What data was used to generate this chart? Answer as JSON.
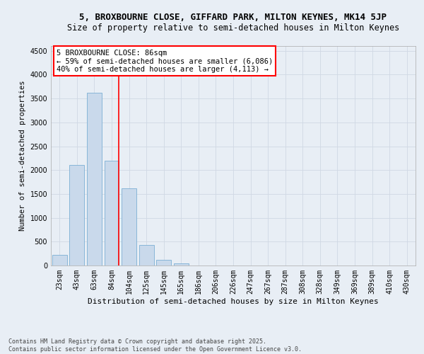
{
  "title1": "5, BROXBOURNE CLOSE, GIFFARD PARK, MILTON KEYNES, MK14 5JP",
  "title2": "Size of property relative to semi-detached houses in Milton Keynes",
  "xlabel": "Distribution of semi-detached houses by size in Milton Keynes",
  "ylabel": "Number of semi-detached properties",
  "footnote": "Contains HM Land Registry data © Crown copyright and database right 2025.\nContains public sector information licensed under the Open Government Licence v3.0.",
  "categories": [
    "23sqm",
    "43sqm",
    "63sqm",
    "84sqm",
    "104sqm",
    "125sqm",
    "145sqm",
    "165sqm",
    "186sqm",
    "206sqm",
    "226sqm",
    "247sqm",
    "267sqm",
    "287sqm",
    "308sqm",
    "328sqm",
    "349sqm",
    "369sqm",
    "389sqm",
    "410sqm",
    "430sqm"
  ],
  "values": [
    230,
    2100,
    3620,
    2200,
    1620,
    430,
    115,
    50,
    0,
    0,
    0,
    0,
    0,
    0,
    0,
    0,
    0,
    0,
    0,
    0,
    0
  ],
  "bar_color": "#c9d9eb",
  "bar_edge_color": "#7bafd4",
  "grid_color": "#d0d8e4",
  "background_color": "#e8eef5",
  "vline_color": "red",
  "annotation_box_text": "5 BROXBOURNE CLOSE: 86sqm\n← 59% of semi-detached houses are smaller (6,086)\n40% of semi-detached houses are larger (4,113) →",
  "ylim": [
    0,
    4600
  ],
  "yticks": [
    0,
    500,
    1000,
    1500,
    2000,
    2500,
    3000,
    3500,
    4000,
    4500
  ],
  "title1_fontsize": 9,
  "title2_fontsize": 8.5,
  "xlabel_fontsize": 8,
  "ylabel_fontsize": 7.5,
  "tick_fontsize": 7,
  "annotation_fontsize": 7.5,
  "footnote_fontsize": 6
}
